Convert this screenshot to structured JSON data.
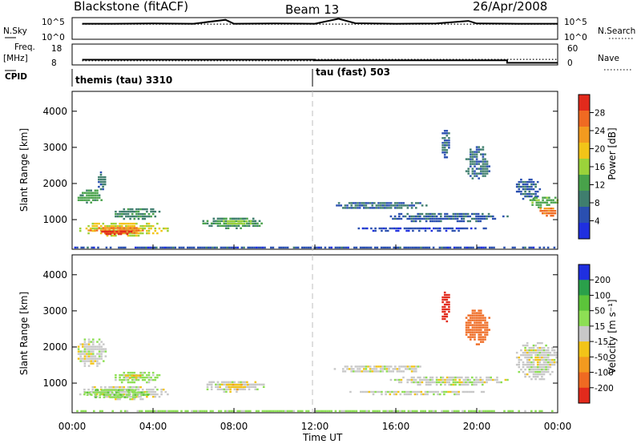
{
  "header": {
    "radar": "Blackstone (fitACF)",
    "beam": "Beam 13",
    "date": "26/Apr/2008"
  },
  "colors": {
    "power_scale": [
      "#1f2fe0",
      "#2a4fb0",
      "#3f7e6e",
      "#48a24a",
      "#9bd23a",
      "#f2c418",
      "#f39a1f",
      "#ef6a22",
      "#e22a1c"
    ],
    "velocity_scale": [
      "#1f2fe0",
      "#2aa04a",
      "#5cc43a",
      "#8ddf54",
      "#c8c8c8",
      "#f2c418",
      "#f39a1f",
      "#ef6a22",
      "#e22a1c"
    ],
    "ground_scatter": "#9a9a9a"
  },
  "chart_data": [
    {
      "type": "line",
      "panel": "noise",
      "left_label": "N.Sky",
      "right_label": "N.Search",
      "left_ticks": [
        "10^5",
        "10^0"
      ],
      "right_ticks": [
        "10^5",
        "10^0"
      ],
      "series": [
        {
          "name": "N.Sky",
          "style": "solid",
          "x": [
            "00:30",
            "01:00",
            "02:00",
            "04:00",
            "06:00",
            "07:35",
            "08:00",
            "10:00",
            "12:00",
            "13:10",
            "14:00",
            "16:00",
            "18:00",
            "19:35",
            "20:00",
            "22:00",
            "24:00"
          ],
          "values": [
            0.72,
            0.72,
            0.72,
            0.73,
            0.72,
            0.9,
            0.72,
            0.73,
            0.72,
            0.95,
            0.74,
            0.72,
            0.73,
            0.85,
            0.73,
            0.72,
            0.72
          ]
        },
        {
          "name": "N.Search",
          "style": "dotted",
          "x": [
            "00:30",
            "24:00"
          ],
          "values": [
            0.7,
            0.7
          ]
        }
      ]
    },
    {
      "type": "line",
      "panel": "frequency",
      "left_label": "Freq. [MHz]",
      "right_label": "Nave",
      "left_ticks": [
        "18",
        "8"
      ],
      "right_ticks": [
        "60",
        "0"
      ],
      "series": [
        {
          "name": "Freq.",
          "style": "solid",
          "x": [
            "00:30",
            "12:00",
            "12:00",
            "21:30",
            "21:30",
            "24:00"
          ],
          "values": [
            10.5,
            10.5,
            10.2,
            10.2,
            9.0,
            9.0
          ]
        },
        {
          "name": "Nave",
          "style": "dotted",
          "x": [
            "00:30",
            "12:00",
            "12:00",
            "24:00"
          ],
          "values": [
            12,
            12,
            16,
            16
          ]
        }
      ]
    },
    {
      "type": "table",
      "panel": "cpid",
      "label": "CPID",
      "segments": [
        {
          "start": "00:30",
          "end": "12:00",
          "text": "themis (tau) 3310"
        },
        {
          "start": "12:00",
          "end": "24:00",
          "text": "tau (fast) 503"
        }
      ]
    },
    {
      "type": "heatmap",
      "panel": "power",
      "ylabel": "Slant Range [km]",
      "xlabel": "",
      "ylim": [
        180,
        4550
      ],
      "xlim": [
        "00:00",
        "24:00"
      ],
      "y_ticks": [
        1000,
        2000,
        3000,
        4000
      ],
      "colorbar": {
        "label": "Power [dB]",
        "ticks": [
          "4",
          "8",
          "12",
          "16",
          "20",
          "24",
          "28"
        ],
        "range": [
          0,
          30
        ]
      },
      "regions": [
        {
          "t_start": "00:10",
          "t_end": "01:30",
          "r_min": 1450,
          "r_max": 1900,
          "level": 11
        },
        {
          "t_start": "01:10",
          "t_end": "01:40",
          "r_min": 1800,
          "r_max": 2400,
          "level": 8
        },
        {
          "t_start": "00:15",
          "t_end": "04:50",
          "r_min": 560,
          "r_max": 980,
          "level": 17
        },
        {
          "t_start": "00:40",
          "t_end": "03:30",
          "r_min": 620,
          "r_max": 860,
          "level": 24
        },
        {
          "t_start": "01:20",
          "t_end": "03:00",
          "r_min": 600,
          "r_max": 760,
          "level": 28
        },
        {
          "t_start": "02:00",
          "t_end": "04:20",
          "r_min": 1000,
          "r_max": 1380,
          "level": 9
        },
        {
          "t_start": "06:20",
          "t_end": "09:30",
          "r_min": 780,
          "r_max": 1120,
          "level": 10
        },
        {
          "t_start": "07:20",
          "t_end": "08:50",
          "r_min": 850,
          "r_max": 1050,
          "level": 15
        },
        {
          "t_start": "12:50",
          "t_end": "17:30",
          "r_min": 1300,
          "r_max": 1550,
          "level": 7
        },
        {
          "t_start": "15:30",
          "t_end": "21:30",
          "r_min": 950,
          "r_max": 1250,
          "level": 6
        },
        {
          "t_start": "13:30",
          "t_end": "20:30",
          "r_min": 700,
          "r_max": 850,
          "level": 4
        },
        {
          "t_start": "18:10",
          "t_end": "18:40",
          "r_min": 2700,
          "r_max": 3550,
          "level": 6
        },
        {
          "t_start": "19:20",
          "t_end": "20:40",
          "r_min": 2100,
          "r_max": 3100,
          "level": 7
        },
        {
          "t_start": "21:50",
          "t_end": "23:10",
          "r_min": 1550,
          "r_max": 2200,
          "level": 6
        },
        {
          "t_start": "22:30",
          "t_end": "24:00",
          "r_min": 1350,
          "r_max": 1700,
          "level": 12
        },
        {
          "t_start": "23:00",
          "t_end": "24:00",
          "r_min": 1100,
          "r_max": 1400,
          "level": 24
        },
        {
          "t_start": "00:00",
          "t_end": "24:00",
          "r_min": 190,
          "r_max": 320,
          "level": 5
        }
      ]
    },
    {
      "type": "heatmap",
      "panel": "velocity",
      "ylabel": "Slant Range [km]",
      "xlabel": "Time UT",
      "ylim": [
        180,
        4550
      ],
      "xlim": [
        "00:00",
        "24:00"
      ],
      "x_ticks": [
        "00:00",
        "04:00",
        "08:00",
        "12:00",
        "16:00",
        "20:00",
        "00:00"
      ],
      "y_ticks": [
        1000,
        2000,
        3000,
        4000
      ],
      "colorbar": {
        "label": "Velocity [m s⁻¹]",
        "ticks": [
          "200",
          "100",
          "50",
          "15",
          "-15",
          "-50",
          "-100",
          "-200"
        ],
        "range": [
          250,
          -250
        ]
      },
      "regions": [
        {
          "t_start": "00:10",
          "t_end": "01:40",
          "r_min": 1450,
          "r_max": 2300,
          "velocity": 0
        },
        {
          "t_start": "00:15",
          "t_end": "04:50",
          "r_min": 560,
          "r_max": 980,
          "velocity": 0
        },
        {
          "t_start": "00:30",
          "t_end": "03:50",
          "r_min": 600,
          "r_max": 900,
          "velocity": 40
        },
        {
          "t_start": "02:00",
          "t_end": "04:20",
          "r_min": 1000,
          "r_max": 1380,
          "velocity": 30
        },
        {
          "t_start": "02:30",
          "t_end": "03:20",
          "r_min": 1150,
          "r_max": 1300,
          "velocity": -40
        },
        {
          "t_start": "06:20",
          "t_end": "09:30",
          "r_min": 780,
          "r_max": 1120,
          "velocity": 0
        },
        {
          "t_start": "07:30",
          "t_end": "08:40",
          "r_min": 850,
          "r_max": 1050,
          "velocity": -40
        },
        {
          "t_start": "12:50",
          "t_end": "17:30",
          "r_min": 1300,
          "r_max": 1550,
          "velocity": 0
        },
        {
          "t_start": "15:30",
          "t_end": "21:30",
          "r_min": 950,
          "r_max": 1250,
          "velocity": 0
        },
        {
          "t_start": "13:30",
          "t_end": "20:30",
          "r_min": 700,
          "r_max": 850,
          "velocity": 0
        },
        {
          "t_start": "18:10",
          "t_end": "18:40",
          "r_min": 2700,
          "r_max": 3600,
          "velocity": -220
        },
        {
          "t_start": "19:20",
          "t_end": "20:40",
          "r_min": 2100,
          "r_max": 3100,
          "velocity": -150
        },
        {
          "t_start": "21:50",
          "t_end": "24:00",
          "r_min": 1100,
          "r_max": 2200,
          "velocity": 0
        },
        {
          "t_start": "00:00",
          "t_end": "24:00",
          "r_min": 190,
          "r_max": 320,
          "velocity": 30
        }
      ]
    }
  ]
}
